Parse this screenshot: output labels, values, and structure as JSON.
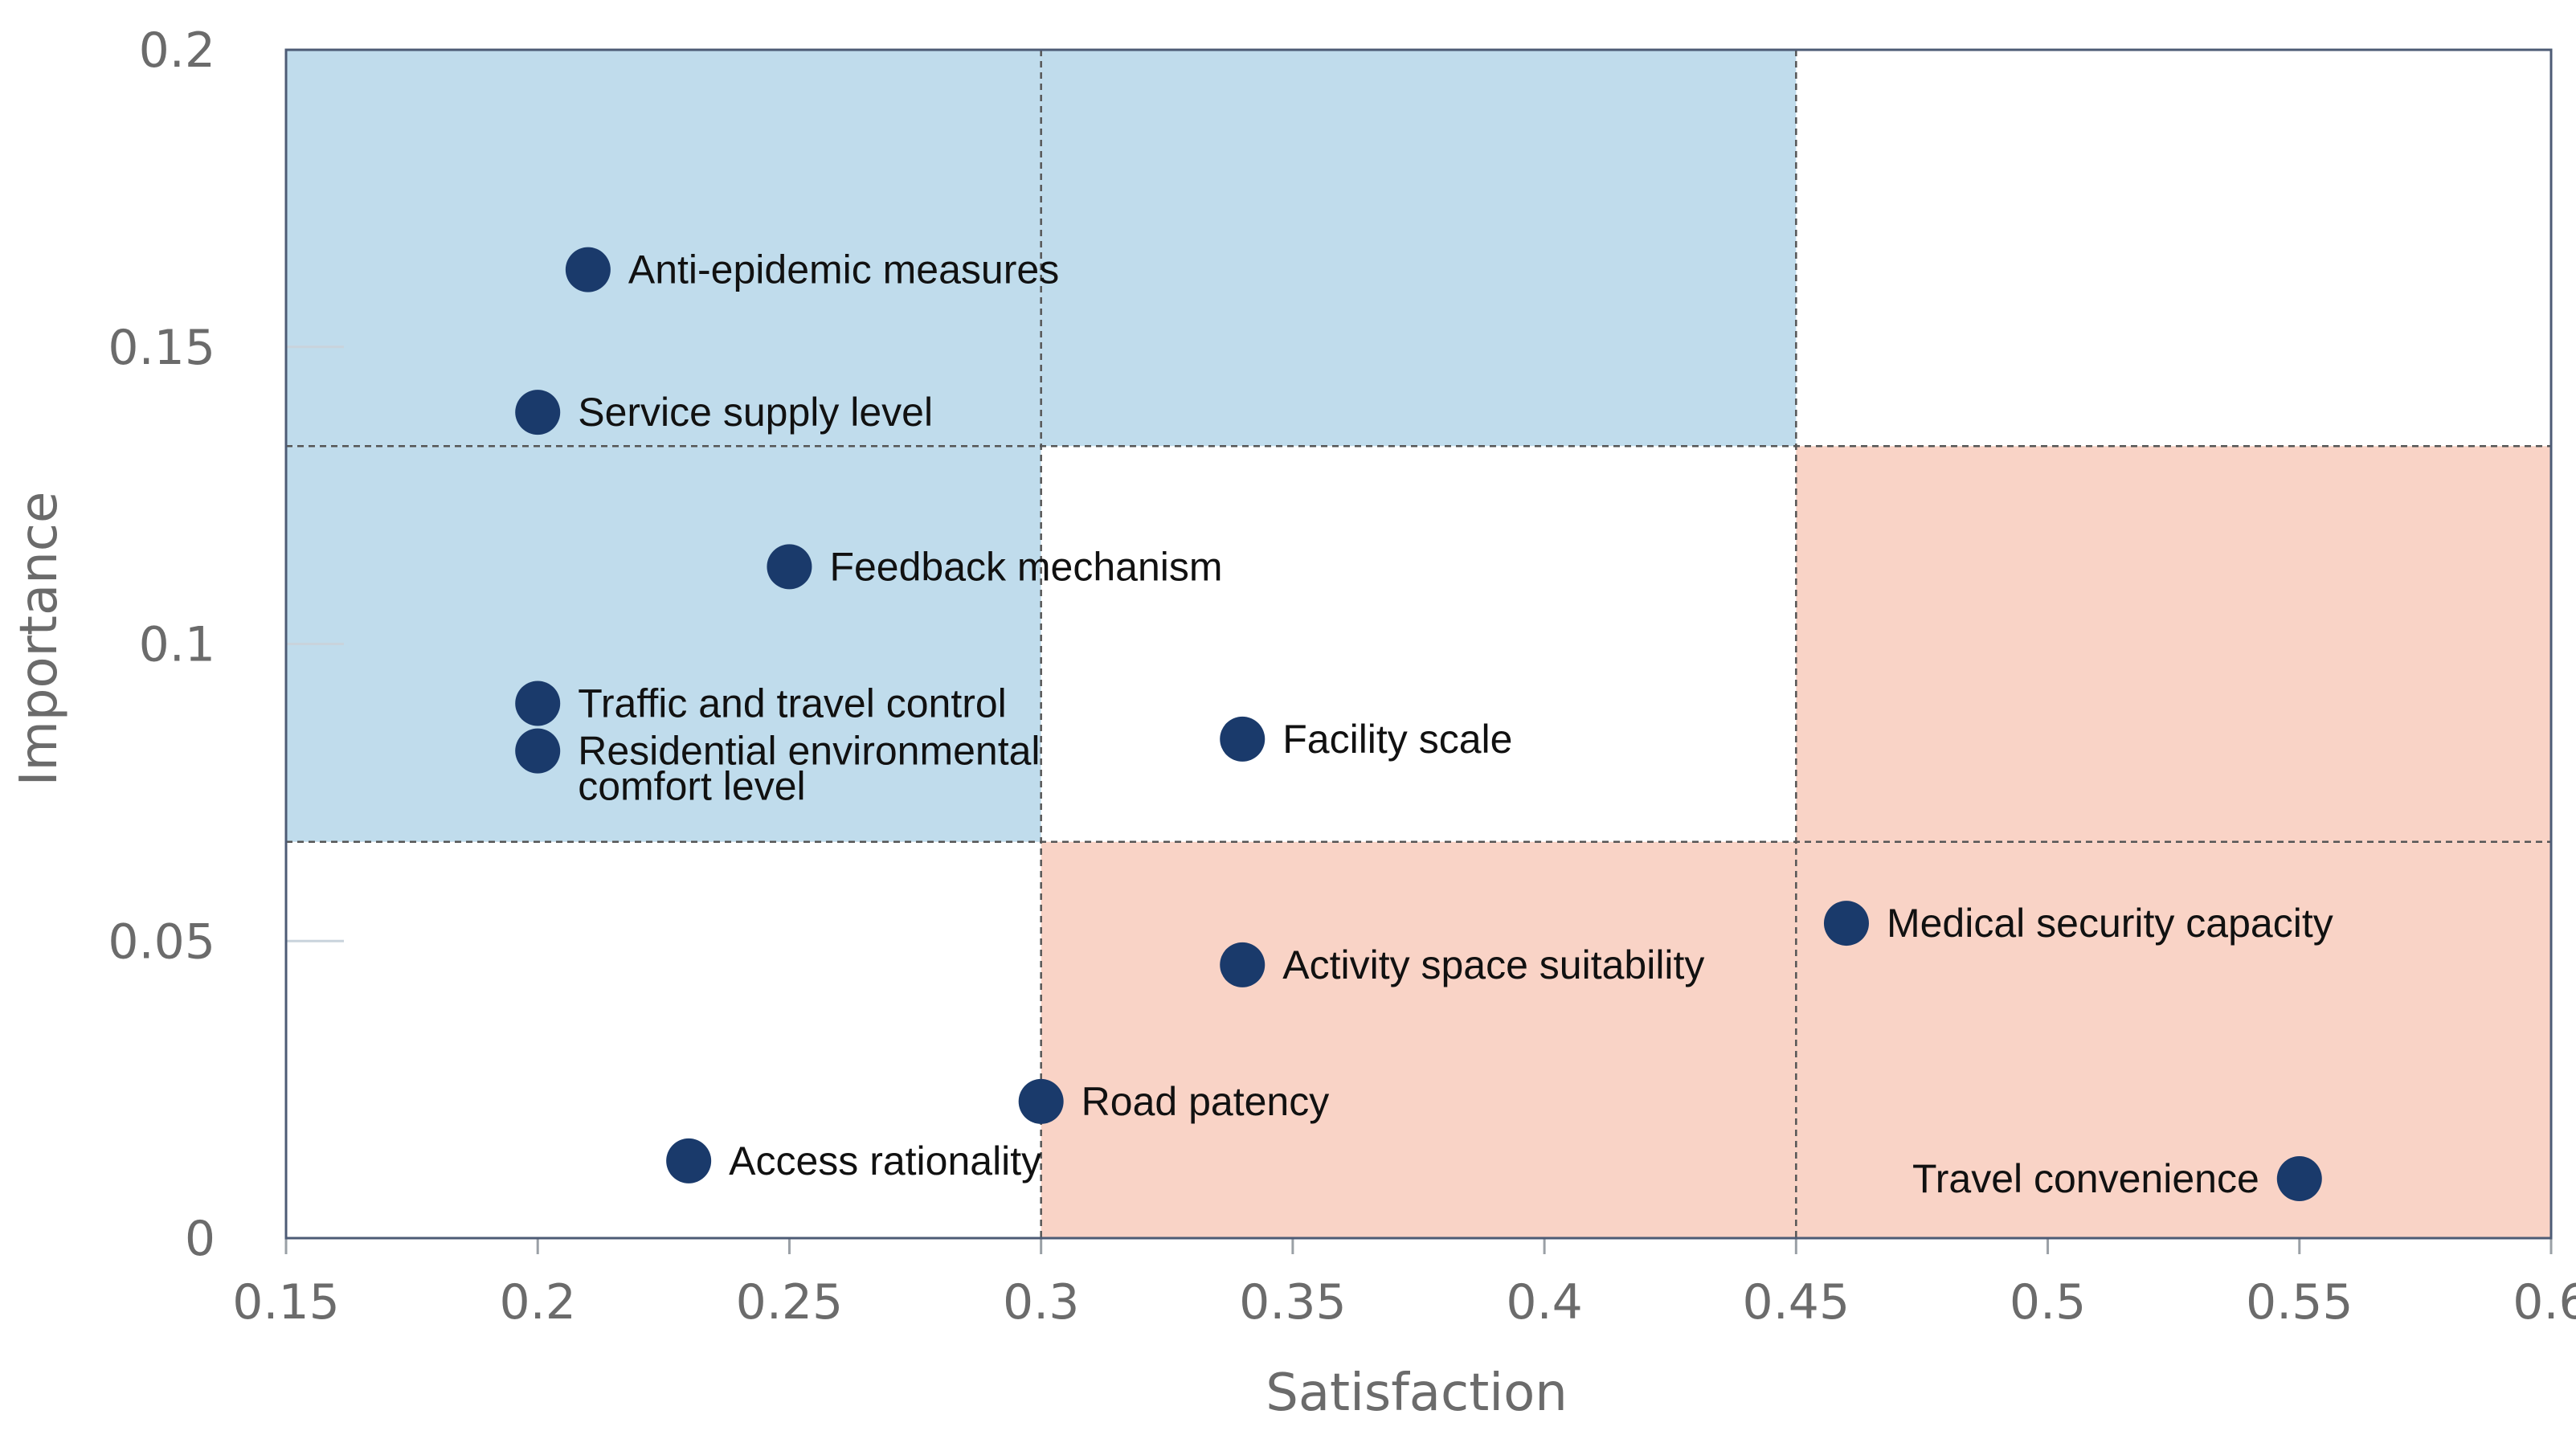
{
  "colors": {
    "quadrant_blue": "#c0dcec",
    "quadrant_red": "#f9d3c6",
    "point": "#1a3a6b",
    "frame": "#4d5b75"
  },
  "chart_data": {
    "type": "scatter",
    "title": "",
    "xlabel": "Satisfaction",
    "ylabel": "Importance",
    "xlim": [
      0.15,
      0.6
    ],
    "ylim": [
      0,
      0.2
    ],
    "x_ticks": [
      "0.15",
      "0.2",
      "0.25",
      "0.3",
      "0.35",
      "0.4",
      "0.45",
      "0.5",
      "0.55",
      "0.6"
    ],
    "y_ticks": [
      "0",
      "0.05",
      "0.1",
      "0.15",
      "0.2"
    ],
    "x_dividers": [
      0.3,
      0.45
    ],
    "y_dividers": [
      0.0667,
      0.1333
    ],
    "shaded_regions": [
      {
        "color": "blue",
        "x": [
          0.15,
          0.45
        ],
        "y": [
          0.1333,
          0.2
        ]
      },
      {
        "color": "blue",
        "x": [
          0.15,
          0.3
        ],
        "y": [
          0.0667,
          0.1333
        ]
      },
      {
        "color": "red",
        "x": [
          0.45,
          0.6
        ],
        "y": [
          0.0667,
          0.1333
        ]
      },
      {
        "color": "red",
        "x": [
          0.3,
          0.6
        ],
        "y": [
          0,
          0.0667
        ]
      }
    ],
    "points": [
      {
        "label": "Anti-epidemic measures",
        "x": 0.21,
        "y": 0.163,
        "label_side": "right"
      },
      {
        "label": "Service supply level",
        "x": 0.2,
        "y": 0.139,
        "label_side": "right"
      },
      {
        "label": "Feedback mechanism",
        "x": 0.25,
        "y": 0.113,
        "label_side": "right"
      },
      {
        "label": "Traffic and travel control",
        "x": 0.2,
        "y": 0.09,
        "label_side": "right"
      },
      {
        "label": "Residential environmental comfort level",
        "x": 0.2,
        "y": 0.082,
        "label_side": "right",
        "label_lines": [
          "Residential environmental",
          "comfort level"
        ]
      },
      {
        "label": "Facility scale",
        "x": 0.34,
        "y": 0.084,
        "label_side": "right"
      },
      {
        "label": "Medical security capacity",
        "x": 0.46,
        "y": 0.053,
        "label_side": "right"
      },
      {
        "label": "Activity space suitability",
        "x": 0.34,
        "y": 0.046,
        "label_side": "right"
      },
      {
        "label": "Road patency",
        "x": 0.3,
        "y": 0.023,
        "label_side": "right"
      },
      {
        "label": "Access rationality",
        "x": 0.23,
        "y": 0.013,
        "label_side": "right"
      },
      {
        "label": "Travel convenience",
        "x": 0.55,
        "y": 0.01,
        "label_side": "left"
      }
    ]
  }
}
